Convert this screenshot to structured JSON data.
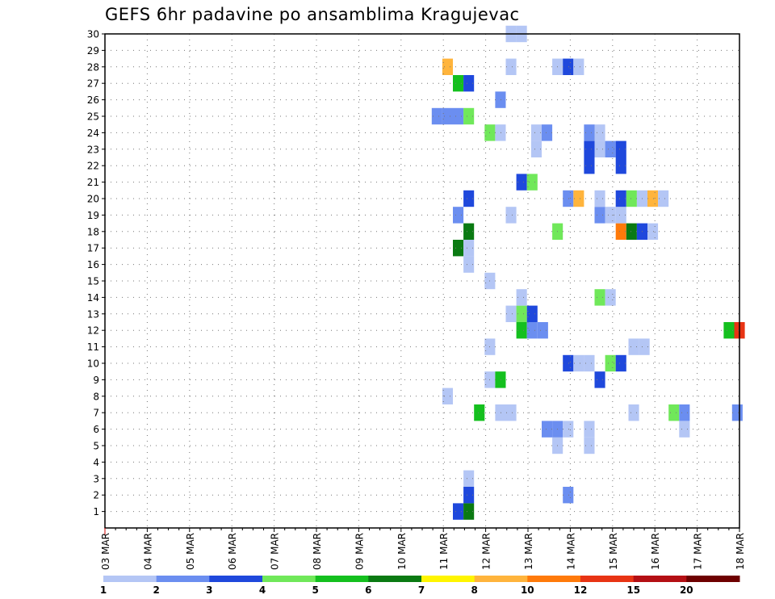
{
  "chart_data": {
    "type": "heatmap",
    "title": "GEFS 6hr padavine po ansamblima Kragujevac",
    "xlabel": "",
    "ylabel": "",
    "x_tick_labels": [
      "03 MAR",
      "04 MAR",
      "05 MAR",
      "06 MAR",
      "07 MAR",
      "08 MAR",
      "09 MAR",
      "10 MAR",
      "11 MAR",
      "12 MAR",
      "13 MAR",
      "14 MAR",
      "15 MAR",
      "16 MAR",
      "17 MAR",
      "18 MAR"
    ],
    "x_range_days": [
      0,
      15
    ],
    "y_tick_labels": [
      "1",
      "2",
      "3",
      "4",
      "5",
      "6",
      "7",
      "8",
      "9",
      "10",
      "11",
      "12",
      "13",
      "14",
      "15",
      "16",
      "17",
      "18",
      "19",
      "20",
      "21",
      "22",
      "23",
      "24",
      "25",
      "26",
      "27",
      "28",
      "29",
      "30"
    ],
    "y_range": [
      0,
      30
    ],
    "grid": true,
    "colorbar": {
      "ticks": [
        "1",
        "2",
        "3",
        "4",
        "5",
        "6",
        "7",
        "8",
        "10",
        "12",
        "15",
        "20"
      ],
      "colors": [
        "#b4c6f5",
        "#6b8ef0",
        "#1f48dc",
        "#70e85a",
        "#14c01e",
        "#0a7a12",
        "#fff500",
        "#ffb43c",
        "#ff7a0a",
        "#e83414",
        "#b40f14",
        "#6e0000"
      ]
    },
    "cells": [
      {
        "m": 1,
        "d": 8.35,
        "c": 2
      },
      {
        "m": 1,
        "d": 8.6,
        "c": 5
      },
      {
        "m": 2,
        "d": 8.6,
        "c": 2
      },
      {
        "m": 2,
        "d": 10.95,
        "c": 1
      },
      {
        "m": 3,
        "d": 8.6,
        "c": 0
      },
      {
        "m": 5,
        "d": 10.7,
        "c": 0
      },
      {
        "m": 5,
        "d": 11.45,
        "c": 0
      },
      {
        "m": 6,
        "d": 10.45,
        "c": 1
      },
      {
        "m": 6,
        "d": 10.7,
        "c": 1
      },
      {
        "m": 6,
        "d": 10.95,
        "c": 0
      },
      {
        "m": 6,
        "d": 11.45,
        "c": 0
      },
      {
        "m": 6,
        "d": 13.7,
        "c": 0
      },
      {
        "m": 7,
        "d": 8.85,
        "c": 4
      },
      {
        "m": 7,
        "d": 9.35,
        "c": 0
      },
      {
        "m": 7,
        "d": 9.6,
        "c": 0
      },
      {
        "m": 7,
        "d": 12.5,
        "c": 0
      },
      {
        "m": 7,
        "d": 13.45,
        "c": 3
      },
      {
        "m": 7,
        "d": 13.7,
        "c": 1
      },
      {
        "m": 7,
        "d": 14.95,
        "c": 1
      },
      {
        "m": 8,
        "d": 8.1,
        "c": 0
      },
      {
        "m": 9,
        "d": 9.1,
        "c": 0
      },
      {
        "m": 9,
        "d": 9.35,
        "c": 4
      },
      {
        "m": 9,
        "d": 11.7,
        "c": 2
      },
      {
        "m": 10,
        "d": 10.95,
        "c": 2
      },
      {
        "m": 10,
        "d": 11.2,
        "c": 0
      },
      {
        "m": 10,
        "d": 11.45,
        "c": 0
      },
      {
        "m": 10,
        "d": 11.95,
        "c": 3
      },
      {
        "m": 10,
        "d": 12.2,
        "c": 2
      },
      {
        "m": 11,
        "d": 9.1,
        "c": 0
      },
      {
        "m": 11,
        "d": 12.5,
        "c": 0
      },
      {
        "m": 11,
        "d": 12.75,
        "c": 0
      },
      {
        "m": 12,
        "d": 9.85,
        "c": 4
      },
      {
        "m": 12,
        "d": 10.1,
        "c": 1
      },
      {
        "m": 12,
        "d": 10.35,
        "c": 1
      },
      {
        "m": 12,
        "d": 14.75,
        "c": 4
      },
      {
        "m": 12,
        "d": 15.0,
        "c": 9
      },
      {
        "m": 13,
        "d": 9.6,
        "c": 0
      },
      {
        "m": 13,
        "d": 9.85,
        "c": 3
      },
      {
        "m": 13,
        "d": 10.1,
        "c": 2
      },
      {
        "m": 14,
        "d": 9.85,
        "c": 0
      },
      {
        "m": 14,
        "d": 11.7,
        "c": 3
      },
      {
        "m": 14,
        "d": 11.95,
        "c": 0
      },
      {
        "m": 15,
        "d": 9.1,
        "c": 0
      },
      {
        "m": 16,
        "d": 8.6,
        "c": 0
      },
      {
        "m": 17,
        "d": 8.35,
        "c": 5
      },
      {
        "m": 17,
        "d": 8.6,
        "c": 0
      },
      {
        "m": 18,
        "d": 8.6,
        "c": 5
      },
      {
        "m": 18,
        "d": 10.7,
        "c": 3
      },
      {
        "m": 18,
        "d": 12.2,
        "c": 8
      },
      {
        "m": 18,
        "d": 12.45,
        "c": 5
      },
      {
        "m": 18,
        "d": 12.7,
        "c": 2
      },
      {
        "m": 18,
        "d": 12.95,
        "c": 0
      },
      {
        "m": 19,
        "d": 8.35,
        "c": 1
      },
      {
        "m": 19,
        "d": 9.6,
        "c": 0
      },
      {
        "m": 19,
        "d": 11.7,
        "c": 1
      },
      {
        "m": 19,
        "d": 11.95,
        "c": 0
      },
      {
        "m": 19,
        "d": 12.2,
        "c": 0
      },
      {
        "m": 20,
        "d": 8.6,
        "c": 2
      },
      {
        "m": 20,
        "d": 10.95,
        "c": 1
      },
      {
        "m": 20,
        "d": 11.2,
        "c": 7
      },
      {
        "m": 20,
        "d": 11.7,
        "c": 0
      },
      {
        "m": 20,
        "d": 12.2,
        "c": 2
      },
      {
        "m": 20,
        "d": 12.45,
        "c": 3
      },
      {
        "m": 20,
        "d": 12.7,
        "c": 0
      },
      {
        "m": 20,
        "d": 12.95,
        "c": 7
      },
      {
        "m": 20,
        "d": 13.2,
        "c": 0
      },
      {
        "m": 21,
        "d": 9.85,
        "c": 2
      },
      {
        "m": 21,
        "d": 10.1,
        "c": 3
      },
      {
        "m": 22,
        "d": 11.45,
        "c": 2
      },
      {
        "m": 22,
        "d": 12.2,
        "c": 2
      },
      {
        "m": 23,
        "d": 10.2,
        "c": 0
      },
      {
        "m": 23,
        "d": 11.45,
        "c": 2
      },
      {
        "m": 23,
        "d": 11.7,
        "c": 0
      },
      {
        "m": 23,
        "d": 11.95,
        "c": 1
      },
      {
        "m": 23,
        "d": 12.2,
        "c": 2
      },
      {
        "m": 24,
        "d": 9.1,
        "c": 3
      },
      {
        "m": 24,
        "d": 9.35,
        "c": 0
      },
      {
        "m": 24,
        "d": 10.2,
        "c": 0
      },
      {
        "m": 24,
        "d": 10.45,
        "c": 1
      },
      {
        "m": 24,
        "d": 11.45,
        "c": 1
      },
      {
        "m": 24,
        "d": 11.7,
        "c": 0
      },
      {
        "m": 25,
        "d": 7.85,
        "c": 1
      },
      {
        "m": 25,
        "d": 8.1,
        "c": 1
      },
      {
        "m": 25,
        "d": 8.35,
        "c": 1
      },
      {
        "m": 25,
        "d": 8.6,
        "c": 3
      },
      {
        "m": 26,
        "d": 9.35,
        "c": 1
      },
      {
        "m": 27,
        "d": 8.35,
        "c": 4
      },
      {
        "m": 27,
        "d": 8.6,
        "c": 2
      },
      {
        "m": 28,
        "d": 8.1,
        "c": 7
      },
      {
        "m": 28,
        "d": 9.6,
        "c": 0
      },
      {
        "m": 28,
        "d": 10.7,
        "c": 0
      },
      {
        "m": 28,
        "d": 10.95,
        "c": 2
      },
      {
        "m": 28,
        "d": 11.2,
        "c": 0
      },
      {
        "m": 30,
        "d": 9.6,
        "c": 0
      },
      {
        "m": 30,
        "d": 9.85,
        "c": 0
      }
    ]
  }
}
